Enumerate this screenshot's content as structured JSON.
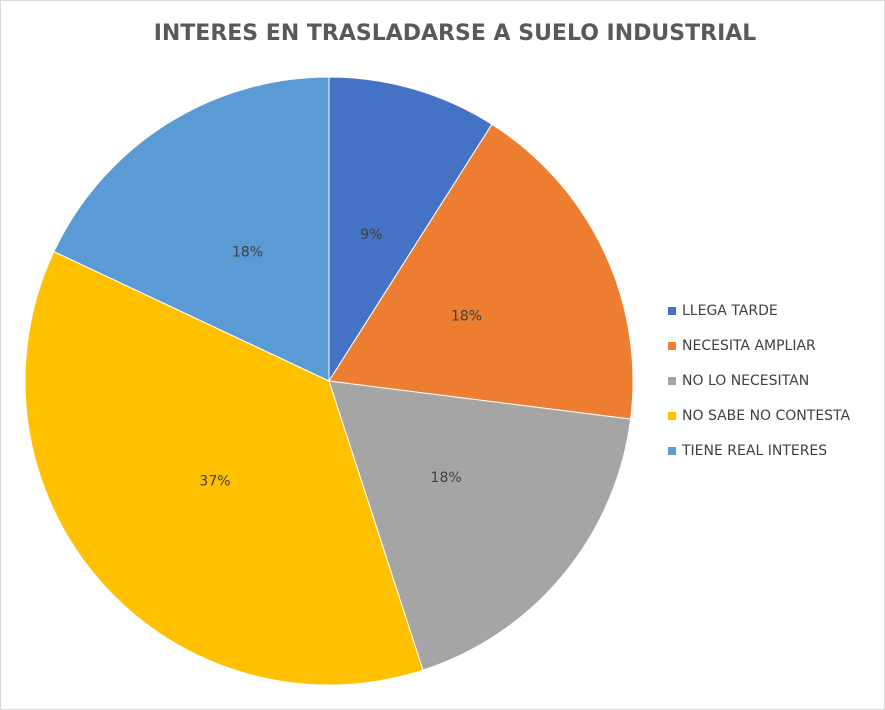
{
  "chart_data": {
    "type": "pie",
    "title": "INTERES EN TRASLADARSE A SUELO INDUSTRIAL",
    "categories": [
      "LLEGA TARDE",
      "NECESITA AMPLIAR",
      "NO LO NECESITAN",
      "NO SABE NO CONTESTA",
      "TIENE REAL INTERES"
    ],
    "values": [
      9,
      18,
      18,
      37,
      18
    ],
    "value_labels": [
      "9%",
      "18%",
      "18%",
      "37%",
      "18%"
    ],
    "colors": [
      "#4472c4",
      "#ed7d31",
      "#a5a5a5",
      "#ffc000",
      "#5b9bd5"
    ],
    "legend": "right"
  }
}
